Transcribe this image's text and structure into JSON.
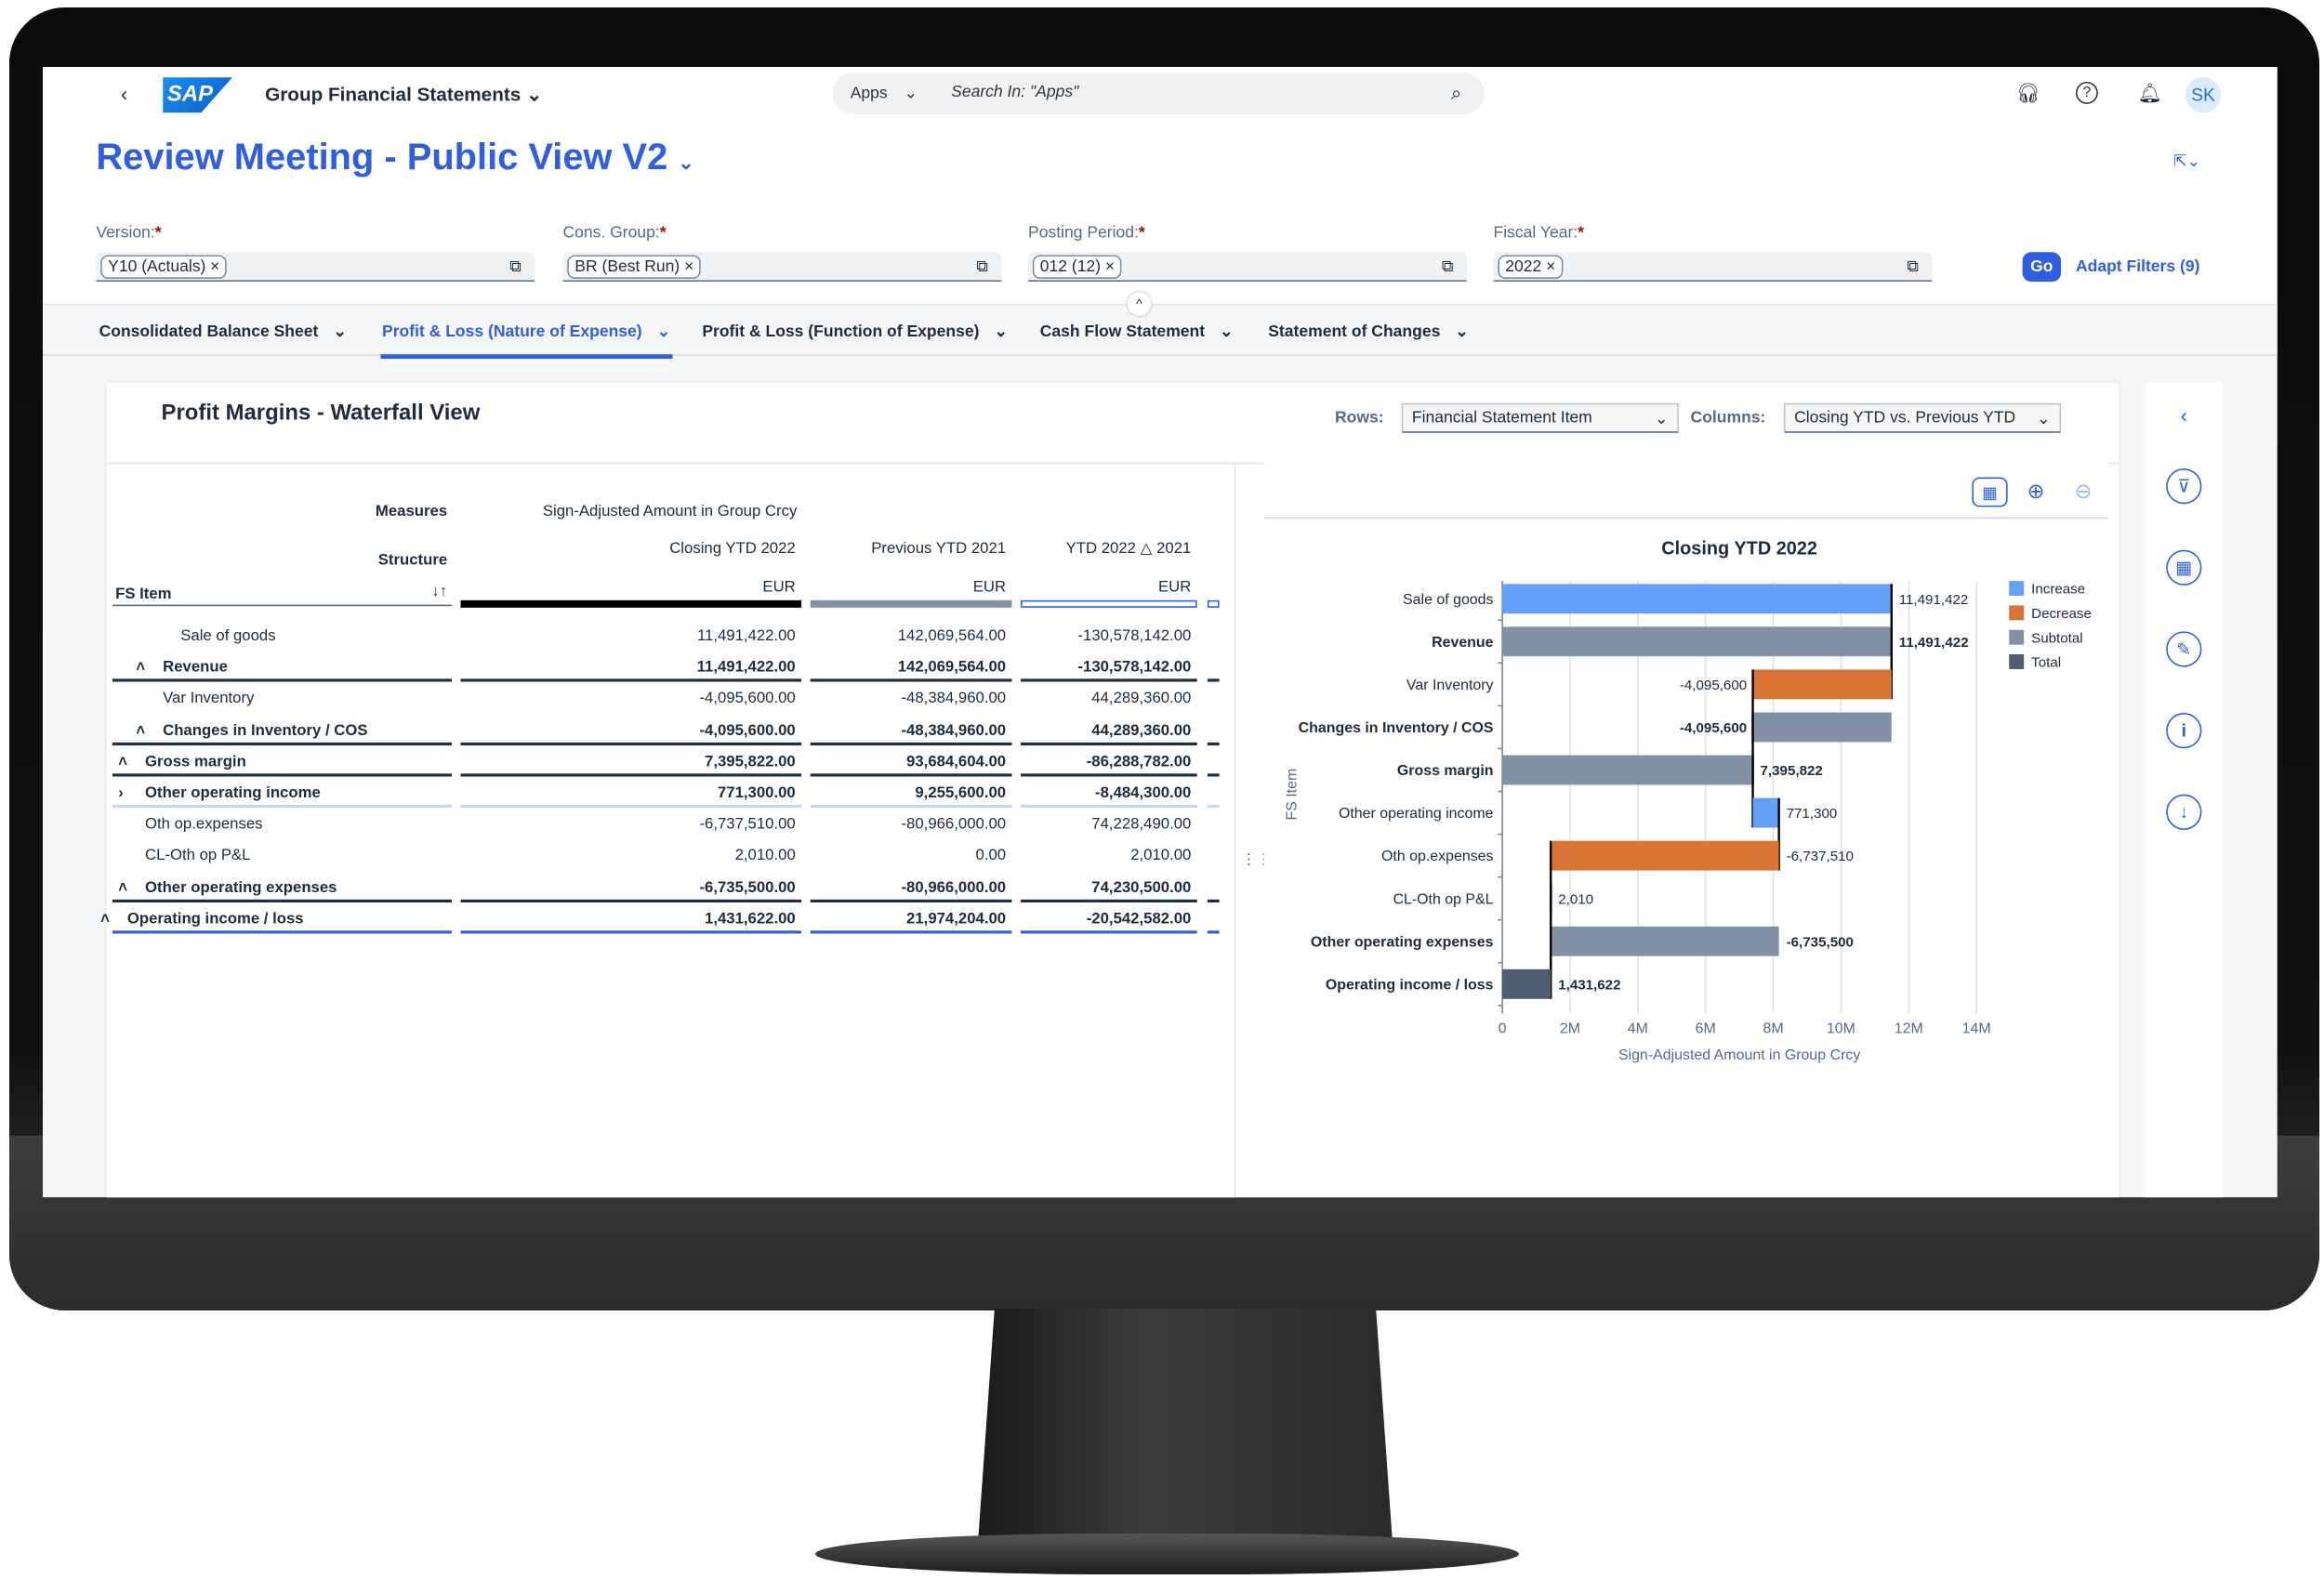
{
  "shell": {
    "app_title": "Group Financial Statements",
    "search_scope": "Apps",
    "search_placeholder": "Search In: \"Apps\"",
    "avatar": "SK",
    "logo": "SAP"
  },
  "page": {
    "title": "Review Meeting - Public View V2"
  },
  "filters": [
    {
      "label": "Version:",
      "required": "*",
      "token": "Y10 (Actuals)"
    },
    {
      "label": "Cons. Group:",
      "required": "*",
      "token": "BR (Best Run)"
    },
    {
      "label": "Posting Period:",
      "required": "*",
      "token": "012 (12)"
    },
    {
      "label": "Fiscal Year:",
      "required": "*",
      "token": "2022"
    }
  ],
  "go_label": "Go",
  "adapt_filters": "Adapt Filters (9)",
  "tabs": [
    {
      "label": "Consolidated Balance Sheet",
      "selected": false
    },
    {
      "label": "Profit & Loss (Nature of Expense)",
      "selected": true
    },
    {
      "label": "Profit & Loss (Function of Expense)",
      "selected": false
    },
    {
      "label": "Cash Flow Statement",
      "selected": false
    },
    {
      "label": "Statement of Changes",
      "selected": false
    }
  ],
  "card": {
    "title": "Profit Margins - Waterfall View",
    "rows_label": "Rows:",
    "rows_value": "Financial Statement Item",
    "columns_label": "Columns:",
    "columns_value": "Closing YTD vs. Previous YTD"
  },
  "table": {
    "measures_label": "Measures",
    "measures_value": "Sign-Adjusted Amount in Group Crcy",
    "structure_label": "Structure",
    "fs_item_label": "FS Item",
    "columns": [
      {
        "name": "Closing YTD 2022",
        "unit": "EUR"
      },
      {
        "name": "Previous YTD 2021",
        "unit": "EUR"
      },
      {
        "name": "YTD 2022 △ 2021",
        "unit": "EUR"
      }
    ],
    "rows": [
      {
        "item": "Sale of goods",
        "values": [
          "11,491,422.00",
          "142,069,564.00",
          "-130,578,142.00"
        ]
      },
      {
        "item": "Revenue",
        "expander": "^",
        "values": [
          "11,491,422.00",
          "142,069,564.00",
          "-130,578,142.00"
        ]
      },
      {
        "item": "Var Inventory",
        "values": [
          "-4,095,600.00",
          "-48,384,960.00",
          "44,289,360.00"
        ]
      },
      {
        "item": "Changes in Inventory / COS",
        "expander": "^",
        "values": [
          "-4,095,600.00",
          "-48,384,960.00",
          "44,289,360.00"
        ]
      },
      {
        "item": "Gross margin",
        "expander": "^",
        "values": [
          "7,395,822.00",
          "93,684,604.00",
          "-86,288,782.00"
        ]
      },
      {
        "item": "Other operating income",
        "expander": "›",
        "values": [
          "771,300.00",
          "9,255,600.00",
          "-8,484,300.00"
        ]
      },
      {
        "item": "Oth op.expenses",
        "values": [
          "-6,737,510.00",
          "-80,966,000.00",
          "74,228,490.00"
        ]
      },
      {
        "item": "CL-Oth op P&L",
        "values": [
          "2,010.00",
          "0.00",
          "2,010.00"
        ]
      },
      {
        "item": "Other operating expenses",
        "expander": "^",
        "values": [
          "-6,735,500.00",
          "-80,966,000.00",
          "74,230,500.00"
        ]
      },
      {
        "item": "Operating income / loss",
        "expander": "^",
        "values": [
          "1,431,622.00",
          "21,974,204.00",
          "-20,542,582.00"
        ]
      }
    ]
  },
  "chart_data": {
    "type": "bar",
    "orientation": "horizontal waterfall",
    "title": "Closing YTD 2022",
    "xlabel": "Sign-Adjusted Amount in Group Crcy",
    "ylabel": "FS Item",
    "xlim": [
      0,
      14000000
    ],
    "xticks": [
      "0",
      "2M",
      "4M",
      "6M",
      "8M",
      "10M",
      "12M",
      "14M"
    ],
    "grid": true,
    "legend_position": "right",
    "legend": [
      {
        "name": "Increase",
        "color": "#65a0f8"
      },
      {
        "name": "Decrease",
        "color": "#da7434"
      },
      {
        "name": "Subtotal",
        "color": "#8391a7"
      },
      {
        "name": "Total",
        "color": "#505c70"
      }
    ],
    "items": [
      {
        "label": "Sale of goods",
        "type": "Increase",
        "value": 11491422,
        "data_label": "11,491,422"
      },
      {
        "label": "Revenue",
        "type": "Subtotal",
        "value": 11491422,
        "data_label": "11,491,422"
      },
      {
        "label": "Var Inventory",
        "type": "Decrease",
        "value": -4095600,
        "data_label": "-4,095,600"
      },
      {
        "label": "Changes in Inventory / COS",
        "type": "Subtotal",
        "value": -4095600,
        "data_label": "-4,095,600"
      },
      {
        "label": "Gross margin",
        "type": "Subtotal",
        "value": 7395822,
        "data_label": "7,395,822"
      },
      {
        "label": "Other operating income",
        "type": "Increase",
        "value": 771300,
        "data_label": "771,300"
      },
      {
        "label": "Oth op.expenses",
        "type": "Decrease",
        "value": -6737510,
        "data_label": "-6,737,510"
      },
      {
        "label": "CL-Oth op P&L",
        "type": "Increase",
        "value": 2010,
        "data_label": "2,010"
      },
      {
        "label": "Other operating expenses",
        "type": "Subtotal",
        "value": -6735500,
        "data_label": "-6,735,500"
      },
      {
        "label": "Operating income / loss",
        "type": "Total",
        "value": 1431622,
        "data_label": "1,431,622"
      }
    ]
  }
}
